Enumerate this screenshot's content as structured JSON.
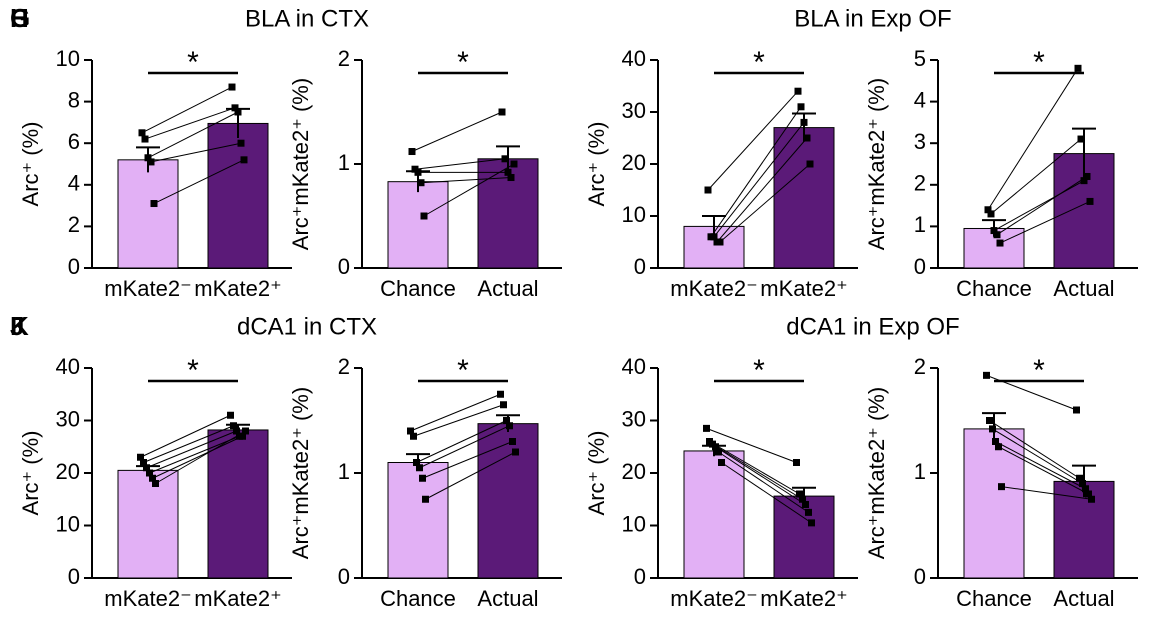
{
  "chart_data": [
    {
      "type": "bar",
      "panel": "G",
      "title": "BLA in CTX",
      "ylabel": "Arc⁺ (%)",
      "categories": [
        "mKate2⁻",
        "mKate2⁺"
      ],
      "colors": [
        "#e2b0f5",
        "#5b1a78"
      ],
      "values": [
        5.2,
        6.95
      ],
      "errors": [
        0.6,
        0.7
      ],
      "points": [
        [
          6.5,
          6.2,
          5.3,
          5.1,
          3.1
        ],
        [
          8.7,
          7.7,
          7.5,
          6.0,
          5.2
        ]
      ],
      "ylim": [
        0,
        10
      ],
      "yticks": [
        0,
        2,
        4,
        6,
        8,
        10
      ],
      "annotation": "*"
    },
    {
      "type": "bar",
      "ylabel": "Arc⁺mKate2⁺ (%)",
      "categories": [
        "Chance",
        "Actual"
      ],
      "colors": [
        "#e2b0f5",
        "#5b1a78"
      ],
      "values": [
        0.83,
        1.05
      ],
      "errors": [
        0.1,
        0.12
      ],
      "points": [
        [
          1.12,
          0.95,
          0.92,
          0.82,
          0.5
        ],
        [
          1.5,
          1.05,
          0.92,
          0.87,
          1.0
        ]
      ],
      "ylim": [
        0,
        2
      ],
      "yticks": [
        0,
        1,
        2
      ],
      "annotation": "*"
    },
    {
      "type": "bar",
      "panel": "H",
      "title": "BLA in Exp OF",
      "ylabel": "Arc⁺ (%)",
      "categories": [
        "mKate2⁻",
        "mKate2⁺"
      ],
      "colors": [
        "#e2b0f5",
        "#5b1a78"
      ],
      "values": [
        8,
        27
      ],
      "errors": [
        2,
        2.7
      ],
      "points": [
        [
          15,
          6,
          6,
          5,
          5
        ],
        [
          34,
          31,
          28,
          25,
          20
        ]
      ],
      "ylim": [
        0,
        40
      ],
      "yticks": [
        0,
        10,
        20,
        30,
        40
      ],
      "annotation": "*"
    },
    {
      "type": "bar",
      "ylabel": "Arc⁺mKate2⁺ (%)",
      "categories": [
        "Chance",
        "Actual"
      ],
      "colors": [
        "#e2b0f5",
        "#5b1a78"
      ],
      "values": [
        0.95,
        2.75
      ],
      "errors": [
        0.2,
        0.6
      ],
      "points": [
        [
          1.4,
          1.3,
          0.9,
          0.8,
          0.6
        ],
        [
          4.8,
          3.1,
          2.1,
          2.2,
          1.6
        ]
      ],
      "ylim": [
        0,
        5
      ],
      "yticks": [
        0,
        1,
        2,
        3,
        4,
        5
      ],
      "annotation": "*"
    },
    {
      "type": "bar",
      "panel": "J",
      "title": "dCA1 in CTX",
      "ylabel": "Arc⁺ (%)",
      "categories": [
        "mKate2⁻",
        "mKate2⁺"
      ],
      "colors": [
        "#e2b0f5",
        "#5b1a78"
      ],
      "values": [
        20.5,
        28.2
      ],
      "errors": [
        0.8,
        1
      ],
      "points": [
        [
          23,
          22,
          21,
          20,
          19,
          18
        ],
        [
          31,
          29,
          28,
          27,
          27,
          28
        ]
      ],
      "ylim": [
        0,
        40
      ],
      "yticks": [
        0,
        10,
        20,
        30,
        40
      ],
      "annotation": "*"
    },
    {
      "type": "bar",
      "ylabel": "Arc⁺mKate2⁺ (%)",
      "categories": [
        "Chance",
        "Actual"
      ],
      "colors": [
        "#e2b0f5",
        "#5b1a78"
      ],
      "values": [
        1.1,
        1.47
      ],
      "errors": [
        0.08,
        0.08
      ],
      "points": [
        [
          1.4,
          1.35,
          1.1,
          1.05,
          0.95,
          0.75
        ],
        [
          1.75,
          1.65,
          1.5,
          1.45,
          1.3,
          1.2
        ]
      ],
      "ylim": [
        0,
        2
      ],
      "yticks": [
        0,
        1,
        2
      ],
      "annotation": "*"
    },
    {
      "type": "bar",
      "panel": "K",
      "title": "dCA1 in Exp OF",
      "ylabel": "Arc⁺ (%)",
      "categories": [
        "mKate2⁻",
        "mKate2⁺"
      ],
      "colors": [
        "#e2b0f5",
        "#5b1a78"
      ],
      "values": [
        24.2,
        15.6
      ],
      "errors": [
        1,
        1.6
      ],
      "points": [
        [
          28.5,
          26,
          25.5,
          25,
          24,
          22
        ],
        [
          22,
          16,
          15,
          14,
          12.5,
          10.5
        ]
      ],
      "ylim": [
        0,
        40
      ],
      "yticks": [
        0,
        10,
        20,
        30,
        40
      ],
      "annotation": "*"
    },
    {
      "type": "bar",
      "ylabel": "Arc⁺mKate2⁺ (%)",
      "categories": [
        "Chance",
        "Actual"
      ],
      "colors": [
        "#e2b0f5",
        "#5b1a78"
      ],
      "values": [
        1.42,
        0.92
      ],
      "errors": [
        0.15,
        0.15
      ],
      "points": [
        [
          1.93,
          1.5,
          1.42,
          1.3,
          1.25,
          0.87
        ],
        [
          1.6,
          0.95,
          0.9,
          0.85,
          0.8,
          0.75
        ]
      ],
      "ylim": [
        0,
        2
      ],
      "yticks": [
        0,
        1,
        2
      ],
      "annotation": "*"
    }
  ]
}
